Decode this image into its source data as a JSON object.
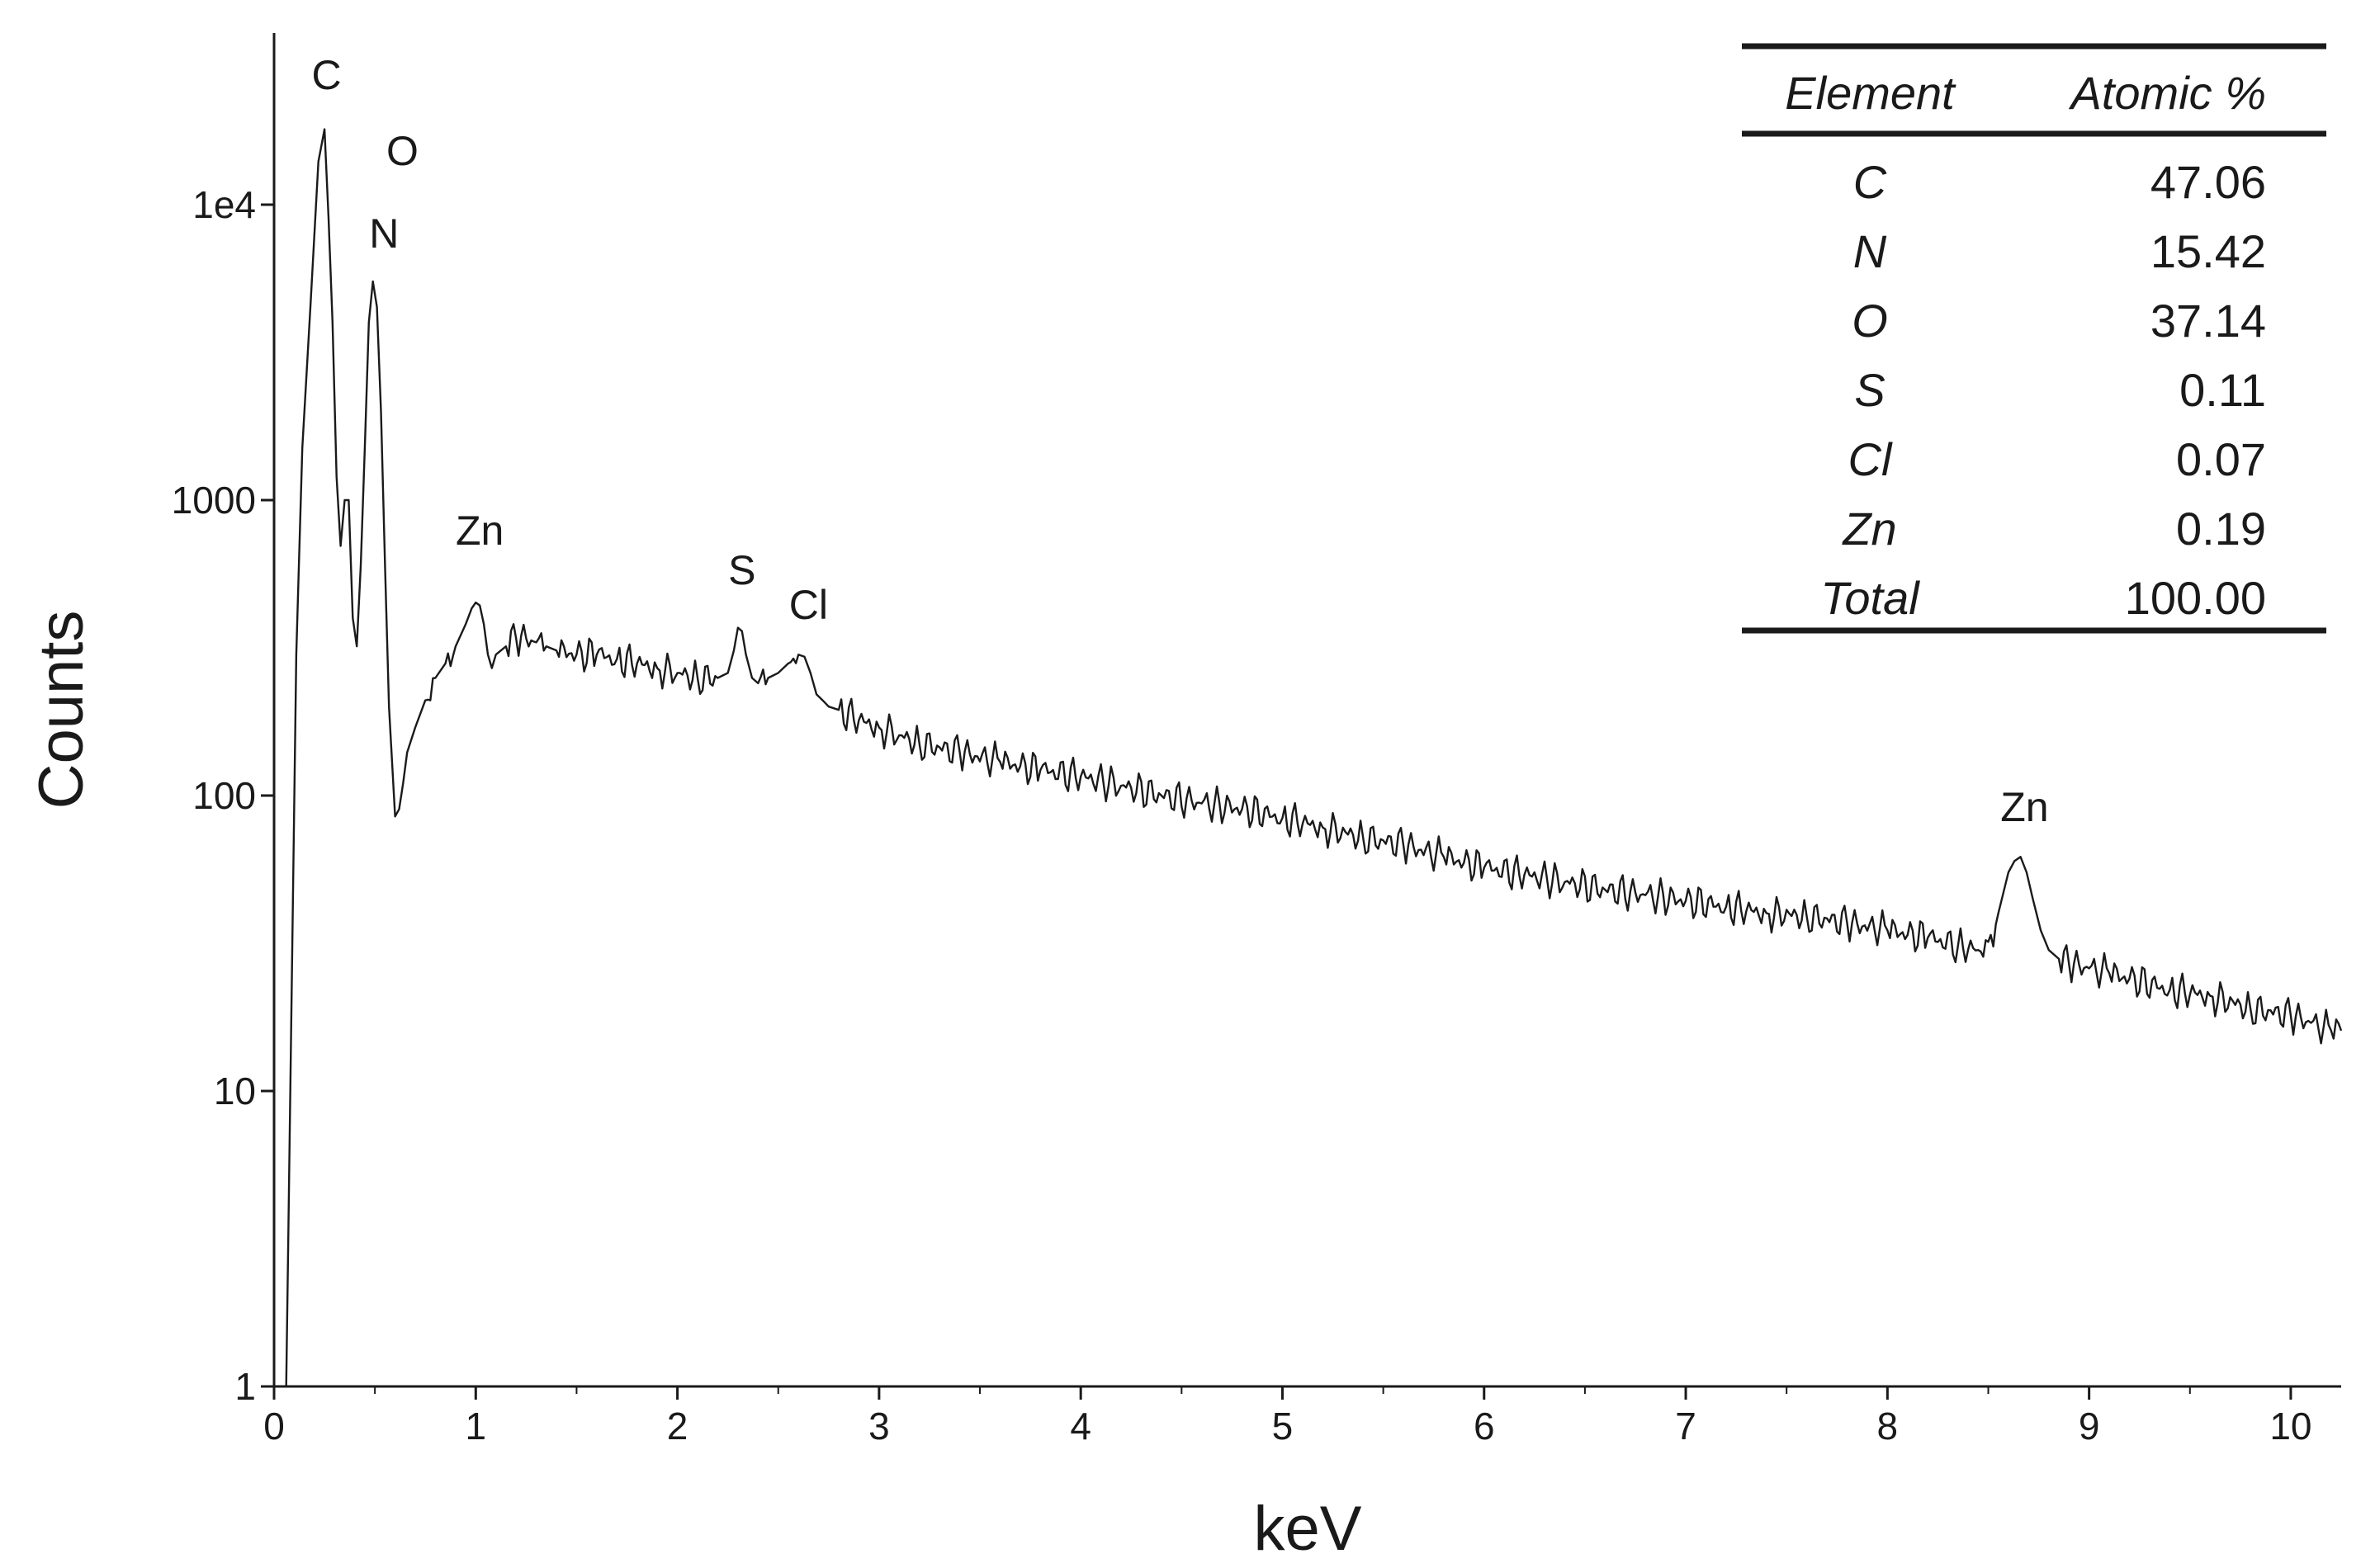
{
  "chart_data": {
    "type": "line",
    "xlabel": "keV",
    "ylabel": "Counts",
    "yscale": "log",
    "xlim": [
      0,
      10.25
    ],
    "ylim": [
      1,
      30000
    ],
    "grid": false,
    "x_ticks": [
      "0",
      "1",
      "2",
      "3",
      "4",
      "5",
      "6",
      "7",
      "8",
      "9",
      "10"
    ],
    "y_ticks": [
      {
        "value": 1,
        "label": "1"
      },
      {
        "value": 10,
        "label": "10"
      },
      {
        "value": 100,
        "label": "100"
      },
      {
        "value": 1000,
        "label": "1000"
      },
      {
        "value": 10000,
        "label": "1e4"
      }
    ],
    "series": [
      {
        "line_color": "#1a1a1a",
        "x": [
          0.0,
          0.06,
          0.07,
          0.09,
          0.11,
          0.14,
          0.18,
          0.22,
          0.25,
          0.27,
          0.29,
          0.31,
          0.33,
          0.35,
          0.37,
          0.39,
          0.41,
          0.43,
          0.45,
          0.47,
          0.49,
          0.51,
          0.53,
          0.55,
          0.57,
          0.6,
          0.62,
          0.64,
          0.66,
          0.7,
          0.75,
          0.8,
          0.85,
          0.9,
          0.95,
          0.98,
          1.0,
          1.02,
          1.04,
          1.06,
          1.08,
          1.1,
          1.15,
          1.2,
          1.25,
          1.3,
          1.35,
          1.4,
          1.5,
          1.6,
          1.7,
          1.8,
          1.9,
          2.0,
          2.1,
          2.2,
          2.25,
          2.28,
          2.3,
          2.32,
          2.34,
          2.37,
          2.4,
          2.45,
          2.5,
          2.55,
          2.6,
          2.63,
          2.66,
          2.69,
          2.72,
          2.75,
          2.8,
          2.9,
          3.0,
          3.1,
          3.2,
          3.4,
          3.6,
          3.8,
          4.0,
          4.2,
          4.4,
          4.6,
          4.8,
          5.0,
          5.2,
          5.4,
          5.6,
          5.8,
          6.0,
          6.2,
          6.4,
          6.6,
          6.8,
          7.0,
          7.2,
          7.4,
          7.6,
          7.8,
          8.0,
          8.2,
          8.35,
          8.45,
          8.5,
          8.55,
          8.6,
          8.63,
          8.66,
          8.69,
          8.72,
          8.76,
          8.8,
          8.85,
          8.9,
          9.0,
          9.1,
          9.2,
          9.4,
          9.6,
          9.8,
          10.0,
          10.1,
          10.2,
          10.25
        ],
        "y": [
          1.0,
          1.0,
          3.0,
          30,
          300,
          1500,
          4500,
          14000,
          18000,
          9000,
          4000,
          1200,
          700,
          1000,
          1000,
          400,
          320,
          600,
          1500,
          4000,
          5500,
          4500,
          2000,
          600,
          200,
          85,
          90,
          110,
          140,
          170,
          210,
          250,
          280,
          320,
          380,
          430,
          450,
          440,
          380,
          300,
          270,
          300,
          320,
          340,
          340,
          330,
          320,
          310,
          300,
          300,
          290,
          280,
          270,
          260,
          250,
          250,
          260,
          310,
          370,
          360,
          300,
          250,
          240,
          250,
          260,
          280,
          300,
          295,
          260,
          220,
          210,
          200,
          195,
          180,
          170,
          160,
          150,
          140,
          130,
          122,
          116,
          108,
          100,
          94,
          90,
          84,
          78,
          72,
          68,
          62,
          57,
          54,
          51,
          48,
          46,
          44,
          42,
          40,
          39,
          37,
          35,
          33,
          31,
          30,
          32,
          40,
          55,
          60,
          62,
          55,
          45,
          35,
          30,
          28,
          27,
          26,
          25,
          24,
          22,
          21,
          19,
          18,
          17,
          16,
          16
        ]
      }
    ],
    "annotations": [
      {
        "text": "C",
        "x": 0.26
      },
      {
        "text": "N",
        "x": 0.39
      },
      {
        "text": "O",
        "x": 0.53
      },
      {
        "text": "Zn",
        "x": 1.02
      },
      {
        "text": "S",
        "x": 2.32
      },
      {
        "text": "Cl",
        "x": 2.65
      },
      {
        "text": "Zn",
        "x": 8.68
      }
    ]
  },
  "table": {
    "headers": [
      "Element",
      "Atomic %"
    ],
    "rows": [
      {
        "element": "C",
        "value": "47.06"
      },
      {
        "element": "N",
        "value": "15.42"
      },
      {
        "element": "O",
        "value": "37.14"
      },
      {
        "element": "S",
        "value": "0.11"
      },
      {
        "element": "Cl",
        "value": "0.07"
      },
      {
        "element": "Zn",
        "value": "0.19"
      },
      {
        "element": "Total",
        "value": "100.00"
      }
    ]
  }
}
